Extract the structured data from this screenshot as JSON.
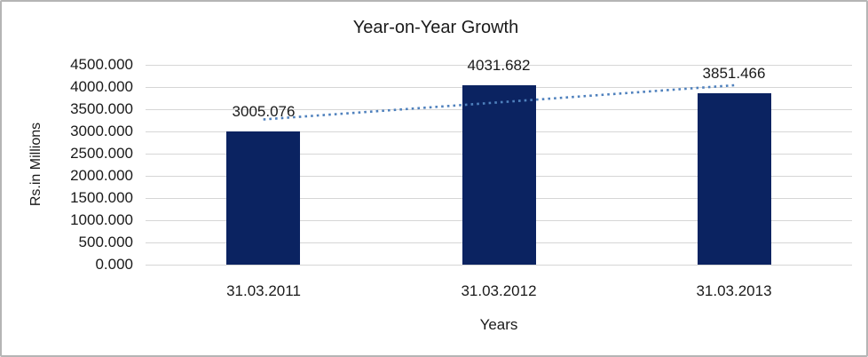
{
  "frame": {
    "background": "#ffffff",
    "border_color": "#b5b5b5"
  },
  "chart_data": {
    "type": "bar",
    "title": "Year-on-Year Growth",
    "xlabel": "Years",
    "ylabel": "Rs.in Millions",
    "categories": [
      "31.03.2011",
      "31.03.2012",
      "31.03.2013"
    ],
    "values": [
      3005.076,
      4031.682,
      3851.466
    ],
    "data_labels": [
      "3005.076",
      "4031.682",
      "3851.466"
    ],
    "ylim": [
      0,
      4500
    ],
    "ytick_step": 500,
    "ytick_labels": [
      "0.000",
      "500.000",
      "1000.000",
      "1500.000",
      "2000.000",
      "2500.000",
      "3000.000",
      "3500.000",
      "4000.000",
      "4500.000"
    ],
    "grid": true,
    "legend": "none",
    "bar_color": "#0b2361",
    "gridline_color": "#d6d6d6",
    "text_color": "#1a1a1a",
    "trendline": {
      "type": "linear",
      "style": "dotted",
      "color": "#4f81bd",
      "start_value": 3270,
      "end_value": 4040
    }
  }
}
